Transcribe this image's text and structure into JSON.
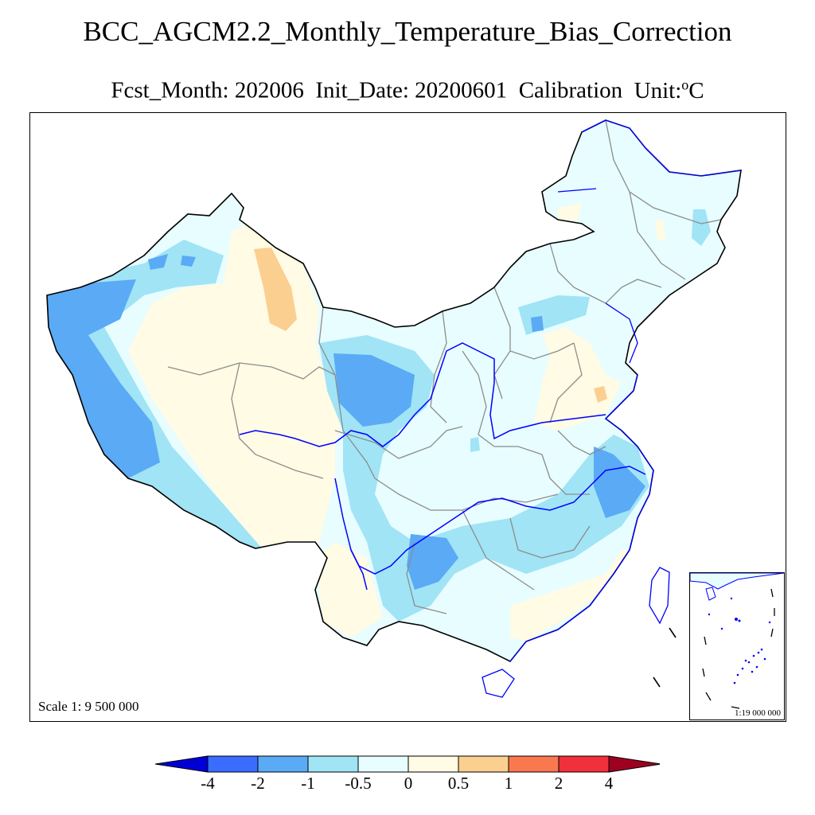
{
  "title": "BCC_AGCM2.2_Monthly_Temperature_Bias_Correction",
  "subtitle": {
    "fcst_month": "Fcst_Month: 202006",
    "init_date": "Init_Date: 20200601",
    "mode": "Calibration",
    "unit_prefix": "Unit:",
    "unit_degree": "o",
    "unit_suffix": "C"
  },
  "map": {
    "scale_label": "Scale 1: 9 500 000",
    "inset_scale_label": "1:19 000 000",
    "boundary_color": "#000000",
    "province_color": "#8c8c8c",
    "river_color": "#0000ff"
  },
  "colorbar": {
    "ticks": [
      "-4",
      "-2",
      "-1",
      "-0.5",
      "0",
      "0.5",
      "1",
      "2",
      "4"
    ],
    "colors": [
      "#0000d6",
      "#3a6cff",
      "#5aaaf5",
      "#a0e4f6",
      "#e8fdff",
      "#fffbe4",
      "#fbcf90",
      "#fa7850",
      "#f0303a",
      "#a00020"
    ]
  }
}
